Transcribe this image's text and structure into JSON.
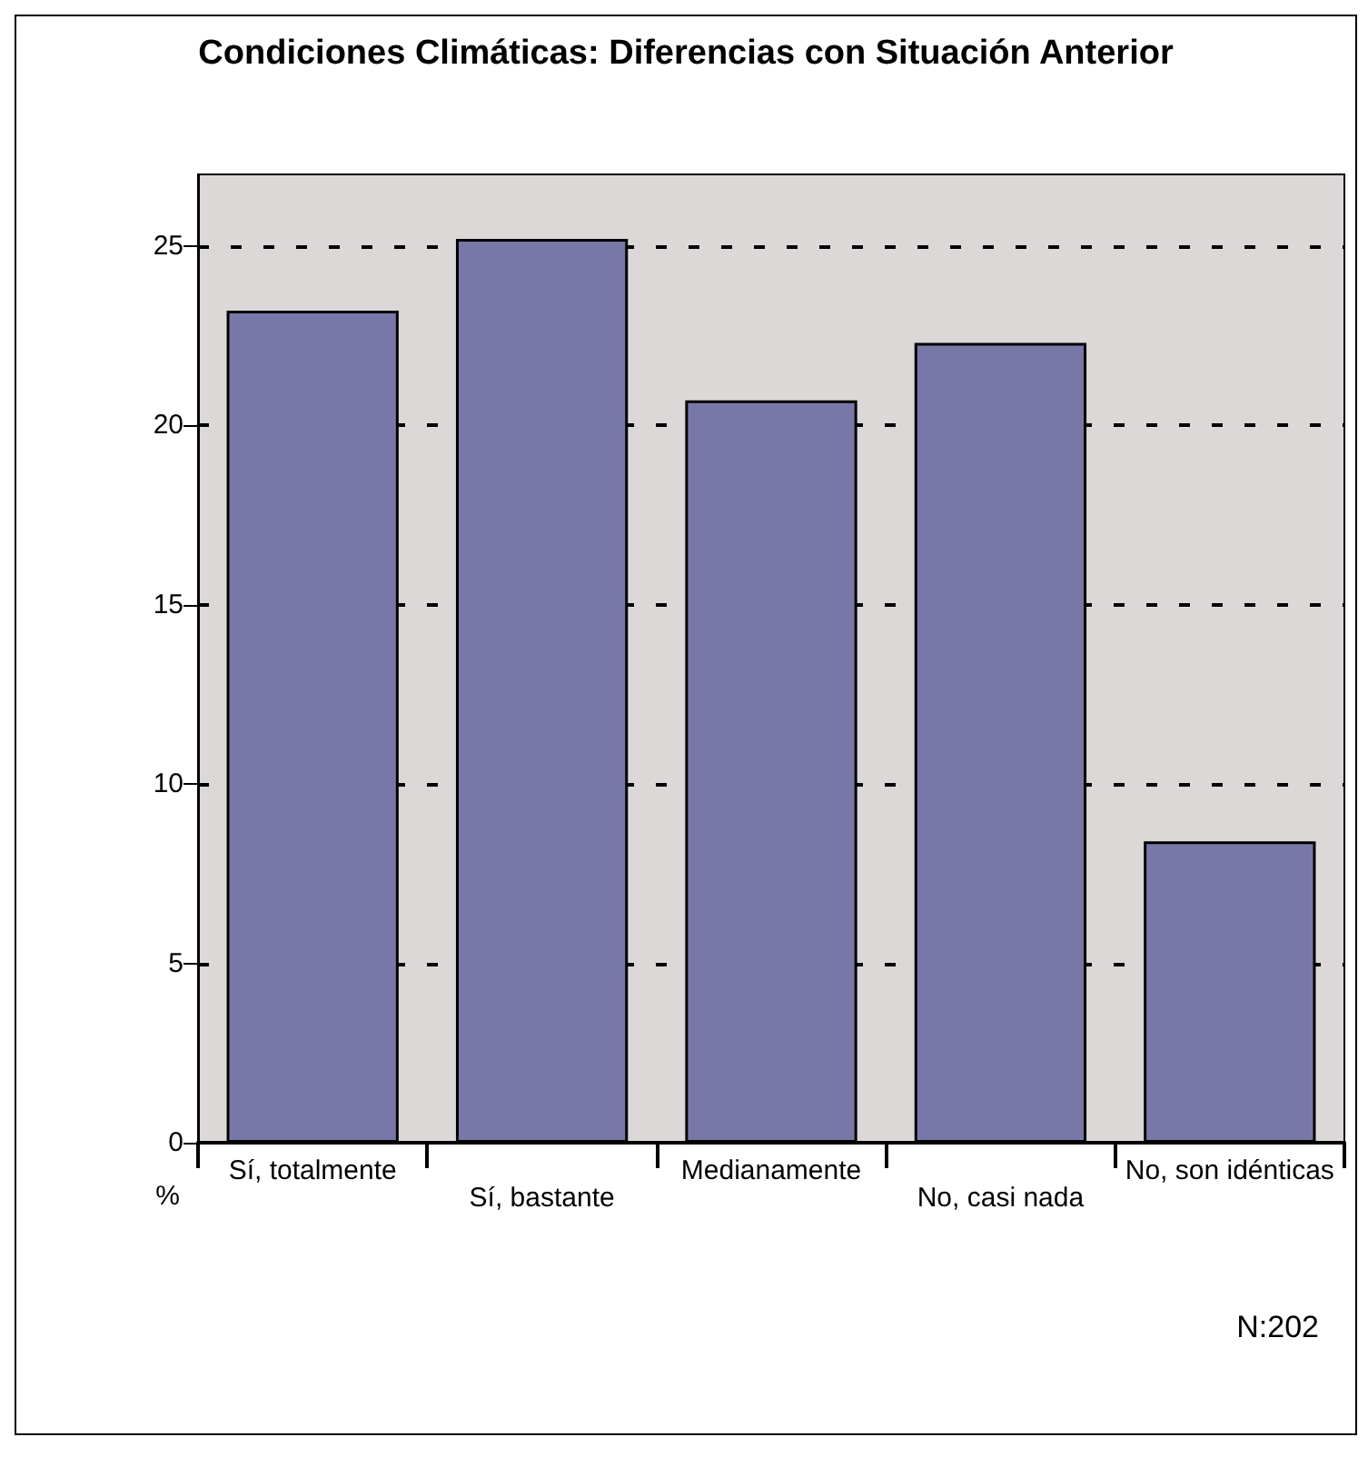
{
  "chart_data": {
    "type": "bar",
    "title": "Condiciones Climáticas: Diferencias con Situación Anterior",
    "categories": [
      "Sí, totalmente",
      "Sí, bastante",
      "Medianamente",
      "No, casi nada",
      "No, son idénticas"
    ],
    "values": [
      23.2,
      25.2,
      20.7,
      22.3,
      8.4
    ],
    "color": "#7878a8",
    "ylabel": "%",
    "ylim": [
      0,
      27
    ],
    "yticks": [
      0,
      5,
      10,
      15,
      20,
      25
    ],
    "grid": "y",
    "annotations": [
      "N:202"
    ]
  }
}
